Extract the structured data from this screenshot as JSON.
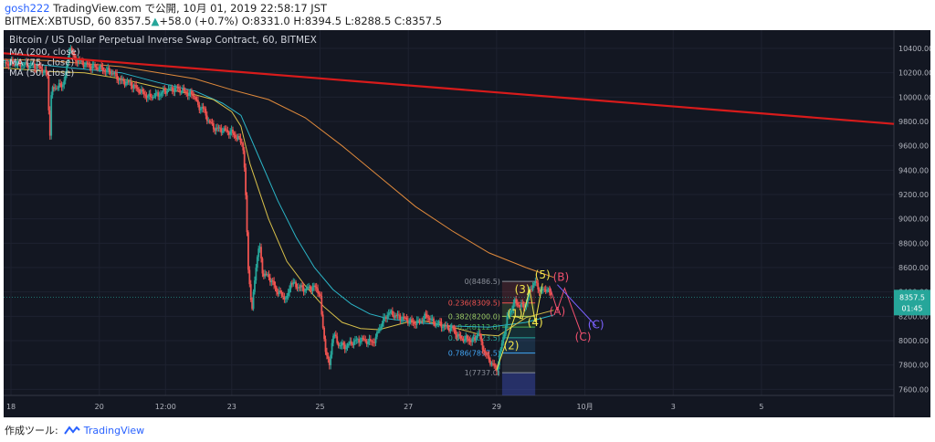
{
  "header": {
    "line1": {
      "user": "gosh222",
      "rest": "TradingView.com で公開, 10月 01, 2019 22:58:17 JST"
    },
    "line2": {
      "symbol": "BITMEX:XBTUSD, 60",
      "price": "8357.5",
      "arrow": "▲",
      "change": "+58.0 (+0.7%)",
      "ohlc": "O:8331.0 H:8394.5 L:8288.5 C:8357.5"
    }
  },
  "footer": {
    "made_with": "作成ツール:",
    "brand": "TradingView",
    "logo_icon": "tradingview-logo"
  },
  "colors": {
    "background": "#131722",
    "candle_up": "#26a69a",
    "candle_down": "#ef5350",
    "trendline": "#d81b1b",
    "ma200": "#e08a3c",
    "ma75": "#2bb5c7",
    "ma50": "#d8c04a",
    "price_line": "#26a69a",
    "wave_impulse": "#f2e54b",
    "wave_corrective_a": "#f0506e",
    "wave_corrective_b": "#7b61ff"
  },
  "chart_data": {
    "type": "candlestick",
    "title": "Bitcoin / US Dollar Perpetual Inverse Swap Contract, 60, BITMEX",
    "legend": [
      "MA (200, close)",
      "MA (75, close)",
      "MA (50, close)"
    ],
    "legend_placement": "top-left",
    "ylim": [
      7550,
      10550
    ],
    "y_ticks": [
      7600,
      7800,
      8000,
      8200,
      8400,
      8600,
      8800,
      9000,
      9200,
      9400,
      9600,
      9800,
      10000,
      10200,
      10400
    ],
    "x_ticks": [
      {
        "label": "18",
        "x": 0
      },
      {
        "label": "20",
        "x": 48
      },
      {
        "label": "12:00",
        "x": 84
      },
      {
        "label": "23",
        "x": 120
      },
      {
        "label": "25",
        "x": 168
      },
      {
        "label": "27",
        "x": 216
      },
      {
        "label": "29",
        "x": 264
      },
      {
        "label": "10月",
        "x": 312
      },
      {
        "label": "3",
        "x": 360
      },
      {
        "label": "5",
        "x": 408
      }
    ],
    "xlim": [
      -4,
      480
    ],
    "last_price": {
      "label": "8357.5",
      "value": 8357.5
    },
    "countdown": "01:45",
    "close_path": [
      [
        -4,
        10280
      ],
      [
        5,
        10270
      ],
      [
        15,
        10250
      ],
      [
        20,
        10180
      ],
      [
        21,
        9620
      ],
      [
        22,
        10050
      ],
      [
        24,
        10080
      ],
      [
        28,
        10100
      ],
      [
        30,
        10200
      ],
      [
        32,
        10430
      ],
      [
        34,
        10320
      ],
      [
        40,
        10270
      ],
      [
        45,
        10250
      ],
      [
        50,
        10230
      ],
      [
        55,
        10200
      ],
      [
        60,
        10130
      ],
      [
        65,
        10110
      ],
      [
        70,
        10050
      ],
      [
        75,
        10000
      ],
      [
        80,
        10020
      ],
      [
        85,
        10060
      ],
      [
        90,
        10070
      ],
      [
        95,
        10040
      ],
      [
        100,
        10010
      ],
      [
        102,
        9900
      ],
      [
        104,
        9930
      ],
      [
        106,
        9840
      ],
      [
        110,
        9750
      ],
      [
        115,
        9730
      ],
      [
        120,
        9710
      ],
      [
        124,
        9650
      ],
      [
        126,
        9620
      ],
      [
        127,
        9400
      ],
      [
        128,
        9010
      ],
      [
        129,
        8600
      ],
      [
        131,
        8230
      ],
      [
        133,
        8600
      ],
      [
        135,
        8790
      ],
      [
        137,
        8540
      ],
      [
        140,
        8530
      ],
      [
        145,
        8400
      ],
      [
        150,
        8340
      ],
      [
        152,
        8480
      ],
      [
        155,
        8450
      ],
      [
        160,
        8420
      ],
      [
        165,
        8440
      ],
      [
        168,
        8390
      ],
      [
        169,
        8180
      ],
      [
        171,
        7930
      ],
      [
        173,
        7780
      ],
      [
        175,
        8060
      ],
      [
        178,
        7970
      ],
      [
        182,
        7950
      ],
      [
        186,
        7990
      ],
      [
        190,
        8010
      ],
      [
        195,
        7990
      ],
      [
        198,
        8000
      ],
      [
        200,
        8100
      ],
      [
        205,
        8230
      ],
      [
        210,
        8200
      ],
      [
        214,
        8180
      ],
      [
        218,
        8150
      ],
      [
        222,
        8150
      ],
      [
        226,
        8210
      ],
      [
        230,
        8140
      ],
      [
        233,
        8140
      ],
      [
        236,
        8110
      ],
      [
        240,
        8100
      ],
      [
        244,
        8020
      ],
      [
        248,
        8010
      ],
      [
        252,
        8000
      ],
      [
        254,
        8080
      ],
      [
        256,
        7960
      ],
      [
        259,
        7860
      ],
      [
        262,
        7800
      ],
      [
        264,
        7760
      ],
      [
        267,
        7980
      ],
      [
        270,
        8200
      ],
      [
        274,
        8320
      ],
      [
        277,
        8280
      ],
      [
        280,
        8300
      ],
      [
        282,
        8420
      ],
      [
        285,
        8480
      ],
      [
        288,
        8400
      ],
      [
        291,
        8430
      ],
      [
        294,
        8357.5
      ]
    ],
    "ma200": [
      [
        -4,
        10310
      ],
      [
        20,
        10300
      ],
      [
        60,
        10250
      ],
      [
        100,
        10150
      ],
      [
        120,
        10060
      ],
      [
        140,
        9980
      ],
      [
        160,
        9830
      ],
      [
        180,
        9600
      ],
      [
        200,
        9350
      ],
      [
        220,
        9100
      ],
      [
        240,
        8900
      ],
      [
        260,
        8720
      ],
      [
        280,
        8600
      ],
      [
        295,
        8520
      ]
    ],
    "ma75": [
      [
        -4,
        10300
      ],
      [
        20,
        10260
      ],
      [
        40,
        10230
      ],
      [
        60,
        10200
      ],
      [
        80,
        10120
      ],
      [
        100,
        10050
      ],
      [
        115,
        9950
      ],
      [
        125,
        9850
      ],
      [
        135,
        9500
      ],
      [
        145,
        9150
      ],
      [
        155,
        8850
      ],
      [
        165,
        8600
      ],
      [
        175,
        8420
      ],
      [
        185,
        8300
      ],
      [
        195,
        8220
      ],
      [
        205,
        8180
      ],
      [
        220,
        8150
      ],
      [
        240,
        8120
      ],
      [
        260,
        8110
      ],
      [
        280,
        8150
      ],
      [
        295,
        8210
      ]
    ],
    "ma50": [
      [
        -4,
        10240
      ],
      [
        20,
        10210
      ],
      [
        40,
        10200
      ],
      [
        60,
        10150
      ],
      [
        80,
        10080
      ],
      [
        100,
        10020
      ],
      [
        110,
        9980
      ],
      [
        120,
        9880
      ],
      [
        125,
        9760
      ],
      [
        130,
        9450
      ],
      [
        140,
        9000
      ],
      [
        150,
        8650
      ],
      [
        160,
        8450
      ],
      [
        170,
        8280
      ],
      [
        180,
        8150
      ],
      [
        190,
        8100
      ],
      [
        200,
        8090
      ],
      [
        215,
        8150
      ],
      [
        225,
        8160
      ],
      [
        240,
        8110
      ],
      [
        255,
        8050
      ],
      [
        265,
        8040
      ],
      [
        280,
        8190
      ],
      [
        295,
        8250
      ]
    ],
    "trendline": {
      "from": [
        -4,
        10360
      ],
      "to": [
        480,
        9780
      ]
    },
    "fibonacci": {
      "x_start": 267,
      "x_end": 285,
      "levels": [
        {
          "ratio": "0",
          "price": 8486.5,
          "label": "0(8486.5)",
          "color": "#8a8f99"
        },
        {
          "ratio": "0.236",
          "price": 8309.5,
          "label": "0.236(8309.5)",
          "color": "#ef5350"
        },
        {
          "ratio": "0.382",
          "price": 8200.0,
          "label": "0.382(8200.0)",
          "color": "#9ccc65"
        },
        {
          "ratio": "0.5",
          "price": 8112.0,
          "label": "0.5(8112.0)",
          "color": "#4caf50"
        },
        {
          "ratio": "0.618",
          "price": 8023.5,
          "label": "0.618(8023.5)",
          "color": "#26a69a"
        },
        {
          "ratio": "0.786",
          "price": 7897.5,
          "label": "0.786(7897.5)",
          "color": "#42a5f5"
        },
        {
          "ratio": "1",
          "price": 7737.0,
          "label": "1(7737.0)",
          "color": "#8a8f99"
        }
      ]
    },
    "wave_labels": [
      {
        "text": "(1)",
        "x": 274,
        "y": 8190,
        "color_key": "wave_impulse"
      },
      {
        "text": "(2)",
        "x": 272,
        "y": 7930,
        "color_key": "wave_impulse"
      },
      {
        "text": "(3)",
        "x": 278,
        "y": 8390,
        "color_key": "wave_impulse"
      },
      {
        "text": "(4)",
        "x": 285,
        "y": 8120,
        "color_key": "wave_impulse"
      },
      {
        "text": "(5)",
        "x": 289,
        "y": 8510,
        "color_key": "wave_impulse"
      },
      {
        "text": "(A)",
        "x": 297,
        "y": 8210,
        "color_key": "wave_corrective_a"
      },
      {
        "text": "(B)",
        "x": 299,
        "y": 8490,
        "color_key": "wave_corrective_a"
      },
      {
        "text": "(C)",
        "x": 311,
        "y": 8000,
        "color_key": "wave_corrective_a"
      },
      {
        "text": "(C)",
        "x": 318,
        "y": 8100,
        "color_key": "wave_corrective_b"
      }
    ],
    "wave_path": [
      [
        264,
        7760
      ],
      [
        274,
        8200
      ],
      [
        278,
        8180
      ],
      [
        282,
        8420
      ],
      [
        285,
        8150
      ],
      [
        289,
        8470
      ]
    ],
    "projection_a": [
      [
        293,
        8440
      ],
      [
        297,
        8250
      ],
      [
        301,
        8430
      ],
      [
        310,
        8060
      ]
    ],
    "projection_b": [
      [
        297,
        8460
      ],
      [
        318,
        8120
      ]
    ]
  }
}
